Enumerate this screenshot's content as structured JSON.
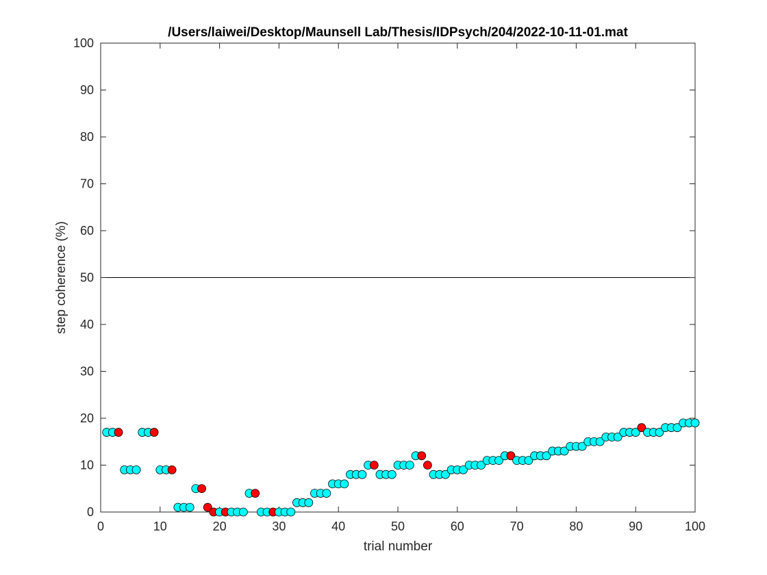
{
  "chart_data": {
    "type": "scatter",
    "title": "/Users/laiwei/Desktop/Maunsell Lab/Thesis/IDPsych/204/2022-10-11-01.mat",
    "xlabel": "trial number",
    "ylabel": "step coherence (%)",
    "xlim": [
      0,
      100
    ],
    "ylim": [
      0,
      100
    ],
    "xticks": [
      0,
      10,
      20,
      30,
      40,
      50,
      60,
      70,
      80,
      90,
      100
    ],
    "yticks": [
      0,
      10,
      20,
      30,
      40,
      50,
      60,
      70,
      80,
      90,
      100
    ],
    "reference_line": {
      "y": 50,
      "color": "#000000"
    },
    "grid": false,
    "colors": {
      "correct": "#00ffff",
      "error": "#ff0000",
      "marker_edge": "#000000"
    },
    "points": [
      {
        "x": 1,
        "y": 17,
        "error": false
      },
      {
        "x": 2,
        "y": 17,
        "error": false
      },
      {
        "x": 3,
        "y": 17,
        "error": true
      },
      {
        "x": 4,
        "y": 9,
        "error": false
      },
      {
        "x": 5,
        "y": 9,
        "error": false
      },
      {
        "x": 6,
        "y": 9,
        "error": false
      },
      {
        "x": 7,
        "y": 17,
        "error": false
      },
      {
        "x": 8,
        "y": 17,
        "error": false
      },
      {
        "x": 9,
        "y": 17,
        "error": true
      },
      {
        "x": 10,
        "y": 9,
        "error": false
      },
      {
        "x": 11,
        "y": 9,
        "error": false
      },
      {
        "x": 12,
        "y": 9,
        "error": true
      },
      {
        "x": 13,
        "y": 1,
        "error": false
      },
      {
        "x": 14,
        "y": 1,
        "error": false
      },
      {
        "x": 15,
        "y": 1,
        "error": false
      },
      {
        "x": 16,
        "y": 5,
        "error": false
      },
      {
        "x": 17,
        "y": 5,
        "error": true
      },
      {
        "x": 18,
        "y": 1,
        "error": true
      },
      {
        "x": 19,
        "y": 0,
        "error": true
      },
      {
        "x": 20,
        "y": 0,
        "error": false
      },
      {
        "x": 21,
        "y": 0,
        "error": true
      },
      {
        "x": 22,
        "y": 0,
        "error": false
      },
      {
        "x": 23,
        "y": 0,
        "error": false
      },
      {
        "x": 24,
        "y": 0,
        "error": false
      },
      {
        "x": 25,
        "y": 4,
        "error": false
      },
      {
        "x": 26,
        "y": 4,
        "error": true
      },
      {
        "x": 27,
        "y": 0,
        "error": false
      },
      {
        "x": 28,
        "y": 0,
        "error": false
      },
      {
        "x": 29,
        "y": 0,
        "error": true
      },
      {
        "x": 30,
        "y": 0,
        "error": false
      },
      {
        "x": 31,
        "y": 0,
        "error": false
      },
      {
        "x": 32,
        "y": 0,
        "error": false
      },
      {
        "x": 33,
        "y": 2,
        "error": false
      },
      {
        "x": 34,
        "y": 2,
        "error": false
      },
      {
        "x": 35,
        "y": 2,
        "error": false
      },
      {
        "x": 36,
        "y": 4,
        "error": false
      },
      {
        "x": 37,
        "y": 4,
        "error": false
      },
      {
        "x": 38,
        "y": 4,
        "error": false
      },
      {
        "x": 39,
        "y": 6,
        "error": false
      },
      {
        "x": 40,
        "y": 6,
        "error": false
      },
      {
        "x": 41,
        "y": 6,
        "error": false
      },
      {
        "x": 42,
        "y": 8,
        "error": false
      },
      {
        "x": 43,
        "y": 8,
        "error": false
      },
      {
        "x": 44,
        "y": 8,
        "error": false
      },
      {
        "x": 45,
        "y": 10,
        "error": false
      },
      {
        "x": 46,
        "y": 10,
        "error": true
      },
      {
        "x": 47,
        "y": 8,
        "error": false
      },
      {
        "x": 48,
        "y": 8,
        "error": false
      },
      {
        "x": 49,
        "y": 8,
        "error": false
      },
      {
        "x": 50,
        "y": 10,
        "error": false
      },
      {
        "x": 51,
        "y": 10,
        "error": false
      },
      {
        "x": 52,
        "y": 10,
        "error": false
      },
      {
        "x": 53,
        "y": 12,
        "error": false
      },
      {
        "x": 54,
        "y": 12,
        "error": true
      },
      {
        "x": 55,
        "y": 10,
        "error": true
      },
      {
        "x": 56,
        "y": 8,
        "error": false
      },
      {
        "x": 57,
        "y": 8,
        "error": false
      },
      {
        "x": 58,
        "y": 8,
        "error": false
      },
      {
        "x": 59,
        "y": 9,
        "error": false
      },
      {
        "x": 60,
        "y": 9,
        "error": false
      },
      {
        "x": 61,
        "y": 9,
        "error": false
      },
      {
        "x": 62,
        "y": 10,
        "error": false
      },
      {
        "x": 63,
        "y": 10,
        "error": false
      },
      {
        "x": 64,
        "y": 10,
        "error": false
      },
      {
        "x": 65,
        "y": 11,
        "error": false
      },
      {
        "x": 66,
        "y": 11,
        "error": false
      },
      {
        "x": 67,
        "y": 11,
        "error": false
      },
      {
        "x": 68,
        "y": 12,
        "error": false
      },
      {
        "x": 69,
        "y": 12,
        "error": true
      },
      {
        "x": 70,
        "y": 11,
        "error": false
      },
      {
        "x": 71,
        "y": 11,
        "error": false
      },
      {
        "x": 72,
        "y": 11,
        "error": false
      },
      {
        "x": 73,
        "y": 12,
        "error": false
      },
      {
        "x": 74,
        "y": 12,
        "error": false
      },
      {
        "x": 75,
        "y": 12,
        "error": false
      },
      {
        "x": 76,
        "y": 13,
        "error": false
      },
      {
        "x": 77,
        "y": 13,
        "error": false
      },
      {
        "x": 78,
        "y": 13,
        "error": false
      },
      {
        "x": 79,
        "y": 14,
        "error": false
      },
      {
        "x": 80,
        "y": 14,
        "error": false
      },
      {
        "x": 81,
        "y": 14,
        "error": false
      },
      {
        "x": 82,
        "y": 15,
        "error": false
      },
      {
        "x": 83,
        "y": 15,
        "error": false
      },
      {
        "x": 84,
        "y": 15,
        "error": false
      },
      {
        "x": 85,
        "y": 16,
        "error": false
      },
      {
        "x": 86,
        "y": 16,
        "error": false
      },
      {
        "x": 87,
        "y": 16,
        "error": false
      },
      {
        "x": 88,
        "y": 17,
        "error": false
      },
      {
        "x": 89,
        "y": 17,
        "error": false
      },
      {
        "x": 90,
        "y": 17,
        "error": false
      },
      {
        "x": 91,
        "y": 18,
        "error": true
      },
      {
        "x": 92,
        "y": 17,
        "error": false
      },
      {
        "x": 93,
        "y": 17,
        "error": false
      },
      {
        "x": 94,
        "y": 17,
        "error": false
      },
      {
        "x": 95,
        "y": 18,
        "error": false
      },
      {
        "x": 96,
        "y": 18,
        "error": false
      },
      {
        "x": 97,
        "y": 18,
        "error": false
      },
      {
        "x": 98,
        "y": 19,
        "error": false
      },
      {
        "x": 99,
        "y": 19,
        "error": false
      },
      {
        "x": 100,
        "y": 19,
        "error": false
      }
    ]
  }
}
